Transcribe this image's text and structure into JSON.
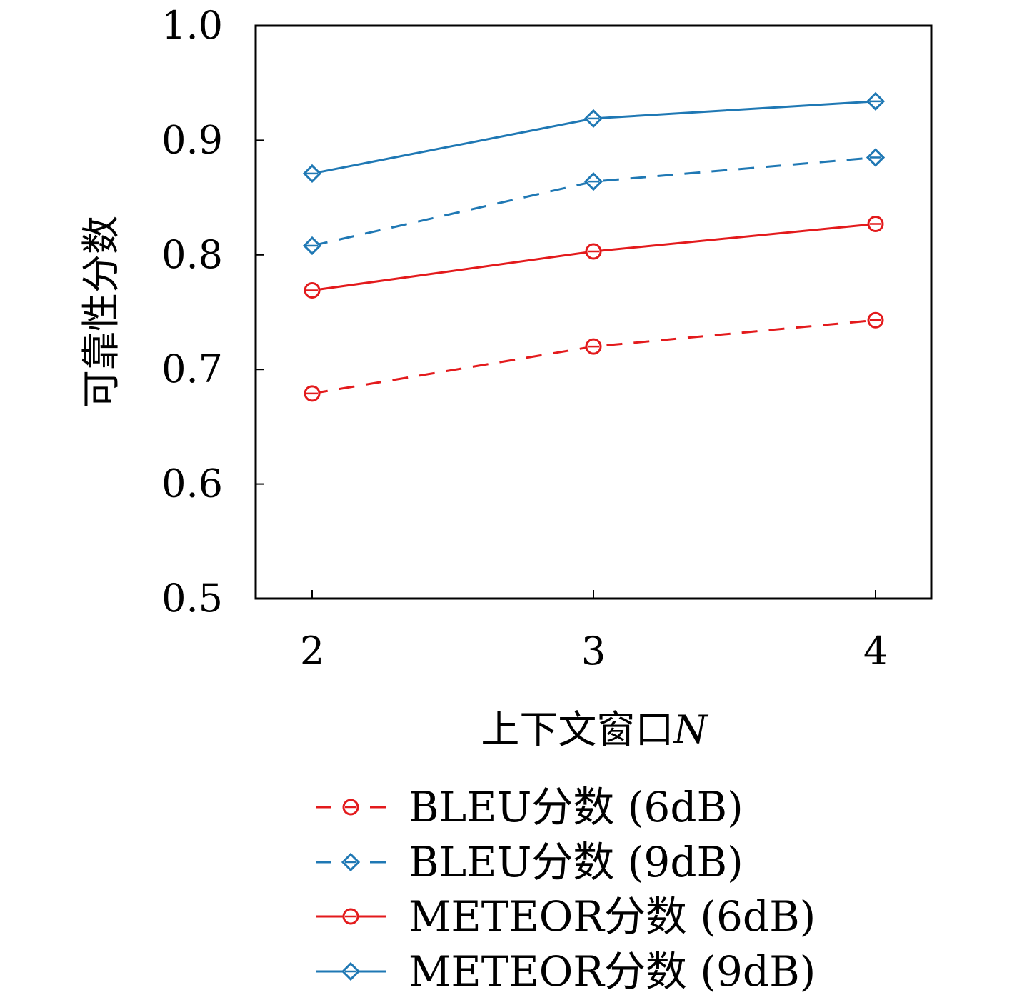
{
  "chart_data": {
    "type": "line",
    "title": "",
    "xlabel": "上下文窗口",
    "xlabel_symbol": "N",
    "ylabel": "可靠性分数",
    "categories": [
      2,
      3,
      4
    ],
    "x_tick_labels": [
      "2",
      "3",
      "4"
    ],
    "ylim": [
      0.5,
      1.0
    ],
    "y_ticks": [
      0.5,
      0.6,
      0.7,
      0.8,
      0.9,
      1.0
    ],
    "y_tick_labels": [
      "0.5",
      "0.6",
      "0.7",
      "0.8",
      "0.9",
      "1.0"
    ],
    "grid": false,
    "legend_position": "bottom",
    "series": [
      {
        "name": "BLEU分数 (6dB)",
        "values": [
          0.679,
          0.72,
          0.743
        ],
        "color": "#e31a1c",
        "dash": true,
        "marker": "circle"
      },
      {
        "name": "BLEU分数 (9dB)",
        "values": [
          0.808,
          0.864,
          0.885
        ],
        "color": "#1f78b4",
        "dash": true,
        "marker": "diamond"
      },
      {
        "name": "METEOR分数 (6dB)",
        "values": [
          0.769,
          0.803,
          0.827
        ],
        "color": "#e31a1c",
        "dash": false,
        "marker": "circle"
      },
      {
        "name": "METEOR分数 (9dB)",
        "values": [
          0.871,
          0.919,
          0.934
        ],
        "color": "#1f78b4",
        "dash": false,
        "marker": "diamond"
      }
    ]
  }
}
